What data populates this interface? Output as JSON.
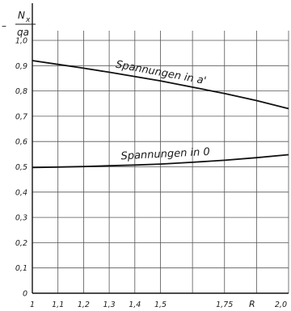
{
  "chart_data": {
    "type": "line",
    "ylabel_numerator": "N",
    "ylabel_subscript": "x",
    "ylabel_denominator": "qa",
    "ylabel_sign": "–",
    "xlabel": "R",
    "ylim": [
      0,
      1.0
    ],
    "xlim": [
      1.0,
      2.0
    ],
    "grid": true,
    "y_ticks": [
      {
        "value": 0.0,
        "label": "0"
      },
      {
        "value": 0.1,
        "label": "0,1"
      },
      {
        "value": 0.2,
        "label": "0,2"
      },
      {
        "value": 0.3,
        "label": "0,3"
      },
      {
        "value": 0.4,
        "label": "0,4"
      },
      {
        "value": 0.5,
        "label": "0,5"
      },
      {
        "value": 0.6,
        "label": "0,6"
      },
      {
        "value": 0.7,
        "label": "0,7"
      },
      {
        "value": 0.8,
        "label": "0,8"
      },
      {
        "value": 0.9,
        "label": "0,9"
      },
      {
        "value": 1.0,
        "label": "1,0"
      }
    ],
    "x_ticks": [
      {
        "value": 1.0,
        "label": "1"
      },
      {
        "value": 1.1,
        "label": "1,1"
      },
      {
        "value": 1.2,
        "label": "1,2"
      },
      {
        "value": 1.3,
        "label": "1,3"
      },
      {
        "value": 1.4,
        "label": "1,4"
      },
      {
        "value": 1.5,
        "label": "1,5"
      },
      {
        "value": 1.75,
        "label": "1,75"
      },
      {
        "value": 2.0,
        "label": "2,0"
      }
    ],
    "x_grid": [
      1.0,
      1.1,
      1.2,
      1.3,
      1.4,
      1.5,
      1.625,
      1.75,
      1.875,
      2.0
    ],
    "series": [
      {
        "name": "Spannungen in a'",
        "label_at": {
          "x": 1.5,
          "y": 0.86
        },
        "points": [
          [
            1.0,
            0.92
          ],
          [
            1.1,
            0.905
          ],
          [
            1.2,
            0.89
          ],
          [
            1.3,
            0.874
          ],
          [
            1.4,
            0.857
          ],
          [
            1.5,
            0.84
          ],
          [
            1.625,
            0.815
          ],
          [
            1.75,
            0.79
          ],
          [
            1.875,
            0.762
          ],
          [
            2.0,
            0.73
          ]
        ]
      },
      {
        "name": "Spannungen in 0",
        "label_at": {
          "x": 1.52,
          "y": 0.538
        },
        "points": [
          [
            1.0,
            0.497
          ],
          [
            1.1,
            0.499
          ],
          [
            1.2,
            0.501
          ],
          [
            1.3,
            0.504
          ],
          [
            1.4,
            0.507
          ],
          [
            1.5,
            0.511
          ],
          [
            1.625,
            0.518
          ],
          [
            1.75,
            0.526
          ],
          [
            1.875,
            0.536
          ],
          [
            2.0,
            0.548
          ]
        ]
      }
    ]
  }
}
